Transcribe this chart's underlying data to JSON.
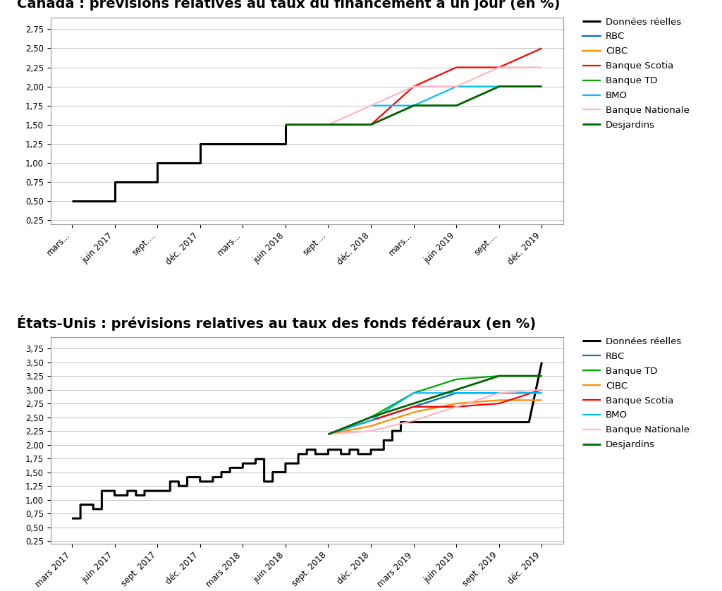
{
  "chart1": {
    "title": "Canada : prévisions relatives au taux du financement à un jour (en %)",
    "xlabels": [
      "mars...",
      "juin 2017",
      "sept....",
      "déc. 2017",
      "mars...",
      "juin 2018",
      "sept....",
      "déc. 2018",
      "mars...",
      "juin 2019",
      "sept....",
      "déc. 2019"
    ],
    "yticks": [
      0.25,
      0.5,
      0.75,
      1.0,
      1.25,
      1.5,
      1.75,
      2.0,
      2.25,
      2.5,
      2.75
    ],
    "ylim": [
      0.2,
      2.9
    ],
    "series": {
      "Données réelles": {
        "color": "#000000",
        "lw": 2.2,
        "x": [
          0,
          1,
          1,
          2,
          2,
          3,
          3,
          4,
          4,
          5,
          5
        ],
        "y": [
          0.5,
          0.5,
          0.75,
          0.75,
          1.0,
          1.0,
          1.25,
          1.25,
          1.25,
          1.25,
          1.5
        ]
      },
      "RBC": {
        "color": "#0070C0",
        "lw": 1.6,
        "x": [],
        "y": []
      },
      "CIBC": {
        "color": "#FF8C00",
        "lw": 1.6,
        "x": [],
        "y": []
      },
      "Banque Scotia": {
        "color": "#FF0000",
        "lw": 1.6,
        "x": [
          6,
          7,
          8,
          9,
          10,
          11
        ],
        "y": [
          1.5,
          1.5,
          2.0,
          2.25,
          2.25,
          2.5
        ]
      },
      "Banque TD": {
        "color": "#00AA00",
        "lw": 1.6,
        "x": [
          5,
          6,
          7,
          8,
          9,
          10,
          11
        ],
        "y": [
          1.5,
          1.5,
          1.5,
          1.75,
          1.75,
          2.0,
          2.0
        ]
      },
      "BMO": {
        "color": "#00BFFF",
        "lw": 1.6,
        "x": [
          7,
          8,
          9,
          10,
          11
        ],
        "y": [
          1.75,
          1.75,
          2.0,
          2.0,
          2.0
        ]
      },
      "Banque Nationale": {
        "color": "#FFB6C1",
        "lw": 1.6,
        "x": [
          6,
          7,
          8,
          9,
          10,
          11
        ],
        "y": [
          1.5,
          1.75,
          2.0,
          2.0,
          2.25,
          2.25
        ]
      },
      "Desjardins": {
        "color": "#006400",
        "lw": 2.0,
        "x": [
          5,
          6,
          7,
          8,
          9,
          10,
          11
        ],
        "y": [
          1.5,
          1.5,
          1.5,
          1.75,
          1.75,
          2.0,
          2.0
        ]
      }
    },
    "legend_order": [
      "Données réelles",
      "RBC",
      "CIBC",
      "Banque Scotia",
      "Banque TD",
      "BMO",
      "Banque Nationale",
      "Desjardins"
    ]
  },
  "chart2": {
    "title": "États-Unis : prévisions relatives au taux des fonds fédéraux (en %)",
    "xlabels": [
      "mars 2017",
      "juin 2017",
      "sept. 2017",
      "déc. 2017",
      "mars 2018",
      "juin 2018",
      "sept. 2018",
      "déc. 2018",
      "mars 2019",
      "juin 2019",
      "sept. 2019",
      "déc. 2019"
    ],
    "yticks": [
      0.25,
      0.5,
      0.75,
      1.0,
      1.25,
      1.5,
      1.75,
      2.0,
      2.25,
      2.5,
      2.75,
      3.0,
      3.25,
      3.5,
      3.75
    ],
    "ylim": [
      0.2,
      3.95
    ],
    "series": {
      "Données réelles": {
        "color": "#000000",
        "lw": 2.2,
        "x": [
          0.0,
          0.2,
          0.2,
          0.5,
          0.5,
          0.7,
          0.7,
          1.0,
          1.0,
          1.3,
          1.3,
          1.5,
          1.5,
          1.7,
          1.7,
          2.0,
          2.0,
          2.3,
          2.3,
          2.5,
          2.5,
          2.7,
          2.7,
          3.0,
          3.0,
          3.3,
          3.3,
          3.5,
          3.5,
          3.7,
          3.7,
          4.0,
          4.0,
          4.3,
          4.3,
          4.5,
          4.5,
          4.7,
          4.7,
          5.0,
          5.0,
          5.3,
          5.3,
          5.5,
          5.5,
          5.7,
          5.7,
          6.0,
          6.0,
          6.3,
          6.3,
          6.5,
          6.5,
          6.7,
          6.7,
          7.0,
          7.0,
          7.3,
          7.3,
          7.5,
          7.5,
          7.7,
          7.7,
          8.0,
          8.0,
          8.3,
          8.3,
          8.5,
          8.5,
          8.7,
          8.7,
          9.0,
          9.0,
          9.3,
          9.3,
          9.5,
          9.5,
          9.7,
          9.7,
          10.0,
          10.0,
          10.3,
          10.3,
          10.5,
          10.5,
          10.7,
          10.7,
          11.0
        ],
        "y": [
          0.66,
          0.66,
          0.91,
          0.91,
          0.83,
          0.83,
          1.16,
          1.16,
          1.08,
          1.08,
          1.16,
          1.16,
          1.08,
          1.08,
          1.16,
          1.16,
          1.16,
          1.16,
          1.33,
          1.33,
          1.25,
          1.25,
          1.41,
          1.41,
          1.33,
          1.33,
          1.41,
          1.41,
          1.5,
          1.5,
          1.58,
          1.58,
          1.66,
          1.66,
          1.74,
          1.74,
          1.33,
          1.33,
          1.5,
          1.5,
          1.66,
          1.66,
          1.83,
          1.83,
          1.91,
          1.91,
          1.83,
          1.83,
          1.91,
          1.91,
          1.83,
          1.83,
          1.91,
          1.91,
          1.83,
          1.83,
          1.91,
          1.91,
          2.08,
          2.08,
          2.25,
          2.25,
          2.41,
          2.41,
          2.41,
          2.41,
          2.41,
          2.41,
          2.41,
          2.41,
          2.41,
          2.41,
          2.41,
          2.41,
          2.41,
          2.41,
          2.41,
          2.41,
          2.41,
          2.41,
          2.41,
          2.41,
          2.41,
          2.41,
          2.41,
          2.41,
          2.41,
          3.5
        ]
      },
      "RBC": {
        "color": "#0070C0",
        "lw": 1.6,
        "x": [
          6,
          7,
          8,
          9,
          10,
          11
        ],
        "y": [
          2.19,
          2.44,
          2.69,
          2.94,
          2.94,
          2.94
        ]
      },
      "Banque TD": {
        "color": "#00AA00",
        "lw": 1.6,
        "x": [
          6,
          7,
          8,
          9,
          10,
          11
        ],
        "y": [
          2.19,
          2.5,
          2.94,
          3.19,
          3.25,
          3.25
        ]
      },
      "CIBC": {
        "color": "#FF8C00",
        "lw": 1.6,
        "x": [
          6,
          7,
          8,
          9,
          10,
          11
        ],
        "y": [
          2.19,
          2.34,
          2.59,
          2.75,
          2.81,
          2.81
        ]
      },
      "Banque Scotia": {
        "color": "#FF0000",
        "lw": 1.6,
        "x": [
          6,
          7,
          8,
          9,
          10,
          11
        ],
        "y": [
          2.19,
          2.44,
          2.69,
          2.69,
          2.75,
          3.0
        ]
      },
      "BMO": {
        "color": "#00BFFF",
        "lw": 1.6,
        "x": [
          6,
          7,
          8,
          9,
          10,
          11
        ],
        "y": [
          2.19,
          2.44,
          2.94,
          2.94,
          2.94,
          2.94
        ]
      },
      "Banque Nationale": {
        "color": "#FFB6C1",
        "lw": 1.6,
        "x": [
          6,
          7,
          8,
          9,
          10,
          11
        ],
        "y": [
          2.19,
          2.25,
          2.44,
          2.69,
          2.94,
          3.0
        ]
      },
      "Desjardins": {
        "color": "#006400",
        "lw": 2.0,
        "x": [
          6,
          7,
          8,
          9,
          10,
          11
        ],
        "y": [
          2.19,
          2.5,
          2.75,
          3.0,
          3.25,
          3.25
        ]
      }
    },
    "legend_order": [
      "Données réelles",
      "RBC",
      "Banque TD",
      "CIBC",
      "Banque Scotia",
      "BMO",
      "Banque Nationale",
      "Desjardins"
    ]
  },
  "bg_color": "#FFFFFF",
  "plot_bg": "#FFFFFF",
  "grid_color": "#BBBBBB",
  "title_fontsize": 14,
  "tick_fontsize": 8.5,
  "legend_fontsize": 9.5
}
